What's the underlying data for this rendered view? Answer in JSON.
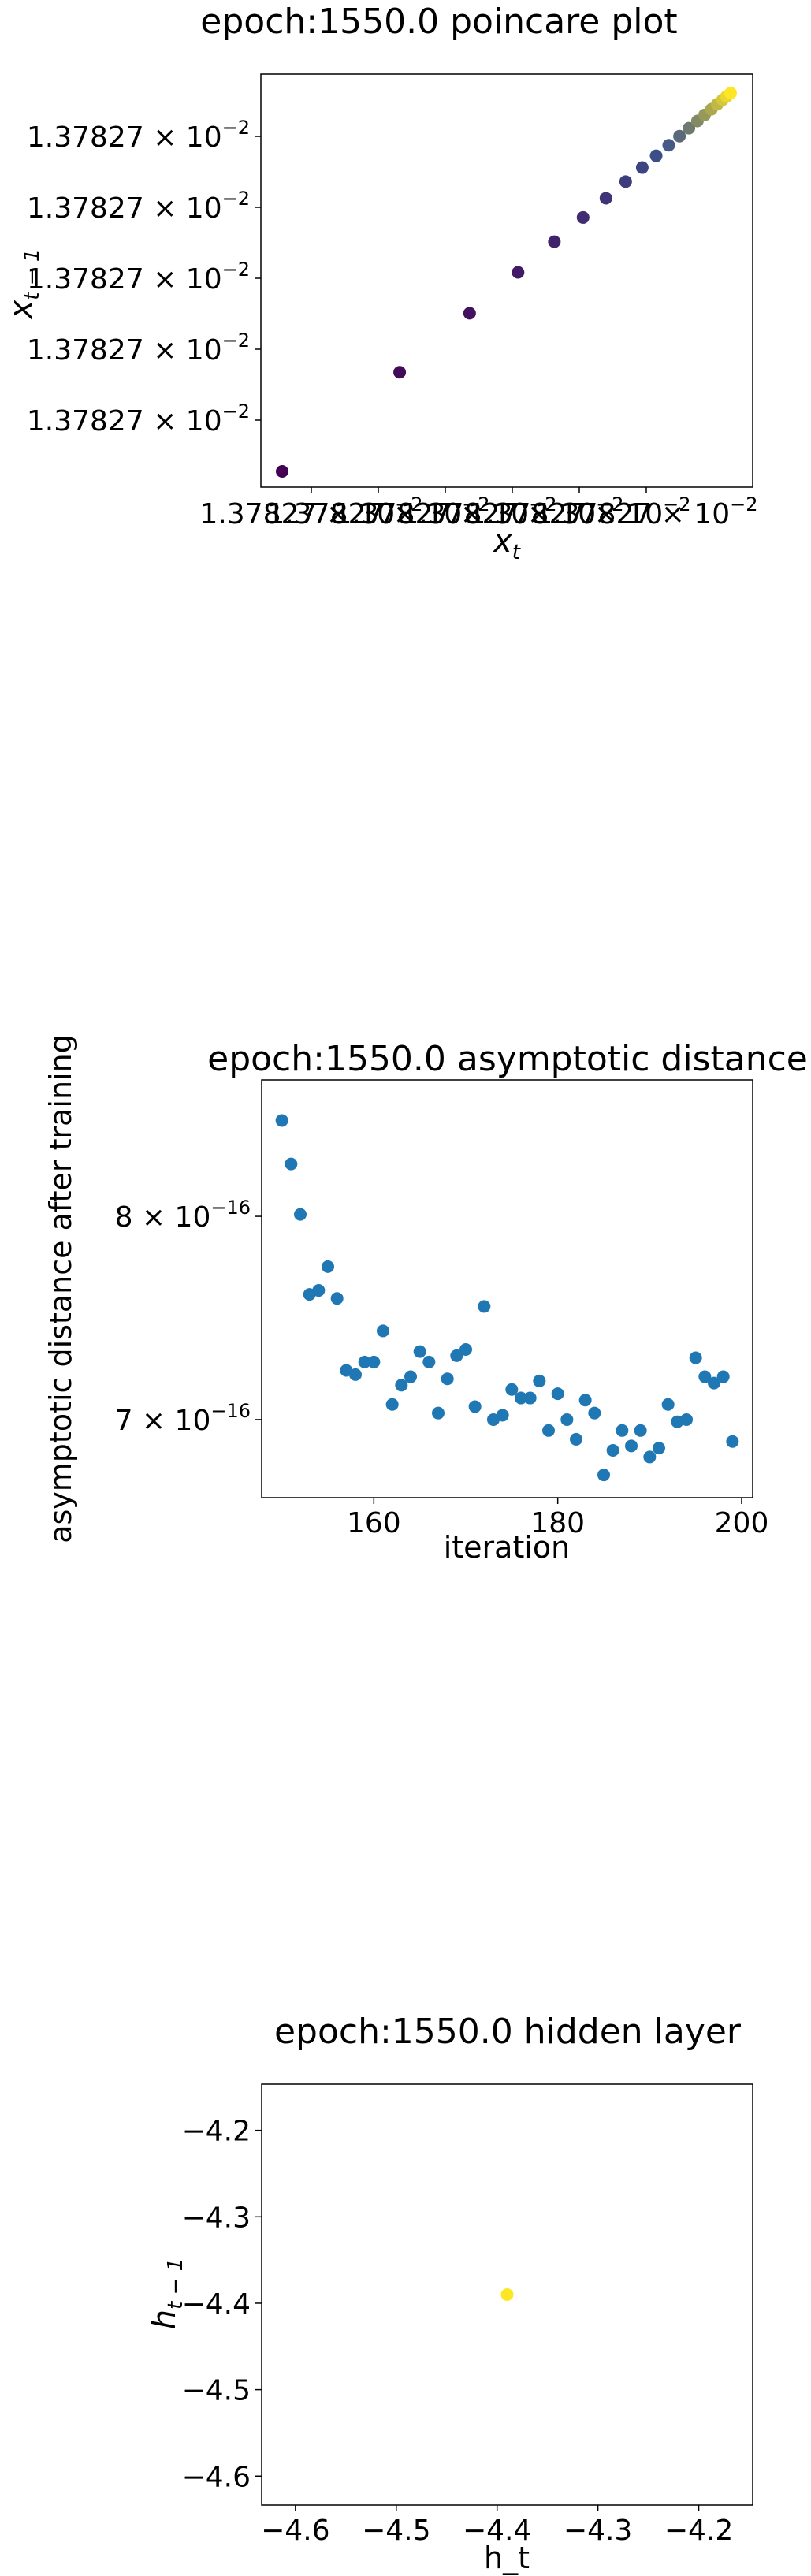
{
  "chart_data": [
    {
      "type": "scatter",
      "title": "epoch:1550.0 poincare plot",
      "xlabel_base": "x",
      "xlabel_sub": "t",
      "ylabel_base": "x",
      "ylabel_sub": "t − 1",
      "x_tick_labels": [
        "1.37827",
        "1.37827",
        "1.37827",
        "1.37827",
        "1.37827",
        "1.37827"
      ],
      "y_tick_labels": [
        "1.37827",
        "1.37827",
        "1.37827",
        "1.37827",
        "1.37827"
      ],
      "tick_multiplier": "× 10",
      "tick_exponent": "−2",
      "colormap": "viridis",
      "colors": {
        "start": "#440154",
        "mid": "#3b528b",
        "end": "#fde725"
      },
      "points_rel": [
        [
          0.0,
          0.0
        ],
        [
          0.262,
          0.262
        ],
        [
          0.418,
          0.418
        ],
        [
          0.526,
          0.526
        ],
        [
          0.607,
          0.607
        ],
        [
          0.671,
          0.671
        ],
        [
          0.722,
          0.722
        ],
        [
          0.766,
          0.766
        ],
        [
          0.803,
          0.803
        ],
        [
          0.834,
          0.834
        ],
        [
          0.862,
          0.862
        ],
        [
          0.886,
          0.886
        ],
        [
          0.907,
          0.907
        ],
        [
          0.926,
          0.926
        ],
        [
          0.942,
          0.942
        ],
        [
          0.957,
          0.957
        ],
        [
          0.97,
          0.97
        ],
        [
          0.982,
          0.982
        ],
        [
          0.991,
          0.991
        ],
        [
          1.0,
          1.0
        ]
      ]
    },
    {
      "type": "scatter",
      "title": "epoch:1550.0 asymptotic distance",
      "xlabel": "iteration",
      "ylabel": "asymptotic distance after training",
      "xlim": [
        147.8,
        201.2
      ],
      "x_ticks": [
        160,
        180,
        200
      ],
      "y_tick_labels": [
        {
          "value": 8e-16,
          "base": "8 × 10",
          "exp": "−16"
        },
        {
          "value": 7e-16,
          "base": "7 × 10",
          "exp": "−16"
        }
      ],
      "ylim_log": [
        6.65e-16,
        8.75e-16
      ],
      "color": "#1f77b4",
      "x": [
        150,
        151,
        152,
        153,
        154,
        155,
        156,
        157,
        158,
        159,
        160,
        161,
        162,
        163,
        164,
        165,
        166,
        167,
        168,
        169,
        170,
        171,
        172,
        173,
        174,
        175,
        176,
        177,
        178,
        179,
        180,
        181,
        182,
        183,
        184,
        185,
        186,
        187,
        188,
        189,
        190,
        191,
        192,
        193,
        194,
        195,
        196,
        197,
        198,
        199
      ],
      "y": [
        8.52e-16,
        8.28e-16,
        8.01e-16,
        7.6e-16,
        7.62e-16,
        7.74e-16,
        7.58e-16,
        7.23e-16,
        7.21e-16,
        7.27e-16,
        7.27e-16,
        7.42e-16,
        7.07e-16,
        7.16e-16,
        7.2e-16,
        7.32e-16,
        7.27e-16,
        7.03e-16,
        7.19e-16,
        7.3e-16,
        7.33e-16,
        7.06e-16,
        7.54e-16,
        7e-16,
        7.02e-16,
        7.14e-16,
        7.1e-16,
        7.1e-16,
        7.18e-16,
        6.95e-16,
        7.12e-16,
        7e-16,
        6.91e-16,
        7.09e-16,
        7.03e-16,
        6.75e-16,
        6.86e-16,
        6.95e-16,
        6.88e-16,
        6.95e-16,
        6.83e-16,
        6.87e-16,
        7.07e-16,
        6.99e-16,
        7e-16,
        7.29e-16,
        7.2e-16,
        7.17e-16,
        7.2e-16,
        6.9e-16
      ]
    },
    {
      "type": "scatter",
      "title": "epoch:1550.0 hidden layer",
      "xlabel": "h_t",
      "ylabel_base": "h",
      "ylabel_sub": "t − 1",
      "xlim": [
        -4.6335,
        -4.1465
      ],
      "ylim": [
        -4.6335,
        -4.1465
      ],
      "x_ticks": [
        -4.6,
        -4.5,
        -4.4,
        -4.3,
        -4.2
      ],
      "y_ticks": [
        -4.6,
        -4.5,
        -4.4,
        -4.3,
        -4.2
      ],
      "tick_labels": [
        "−4.6",
        "−4.5",
        "−4.4",
        "−4.3",
        "−4.2"
      ],
      "color": "#fde725",
      "points": [
        [
          -4.39,
          -4.39
        ]
      ]
    }
  ]
}
